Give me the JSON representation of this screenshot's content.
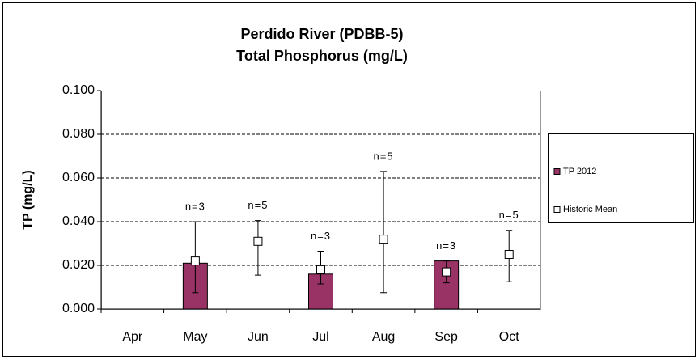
{
  "chart_data": {
    "type": "bar",
    "title": [
      "Perdido River (PDBB-5)",
      "Total Phosphorus (mg/L)"
    ],
    "y_label": "TP (mg/L)",
    "categories": [
      "Apr",
      "May",
      "Jun",
      "Jul",
      "Aug",
      "Sep",
      "Oct"
    ],
    "series": [
      {
        "name": "TP 2012",
        "type": "bar",
        "color": "#993366",
        "values": [
          null,
          0.021,
          null,
          0.016,
          null,
          0.022,
          null
        ]
      },
      {
        "name": "Historic Mean",
        "type": "point",
        "color": "#ffffff",
        "values": [
          null,
          0.022,
          0.031,
          0.018,
          0.032,
          0.017,
          0.025
        ],
        "lower": [
          null,
          0.0075,
          0.0155,
          0.0115,
          0.0075,
          0.012,
          0.0125
        ],
        "upper": [
          null,
          0.04,
          0.0405,
          0.0265,
          0.063,
          0.022,
          0.036
        ]
      }
    ],
    "annotations": [
      null,
      "n=3",
      "n=5",
      "n=3",
      "n=5",
      "n=3",
      "n=5"
    ],
    "ylim": [
      0,
      0.1
    ],
    "yticks": [
      {
        "value": 0,
        "label": "0.000"
      },
      {
        "value": 0.02,
        "label": "0.020"
      },
      {
        "value": 0.04,
        "label": "0.040"
      },
      {
        "value": 0.06,
        "label": "0.060"
      },
      {
        "value": 0.08,
        "label": "0.080"
      },
      {
        "value": 0.1,
        "label": "0.100"
      }
    ],
    "grid": true,
    "legend": "right"
  }
}
